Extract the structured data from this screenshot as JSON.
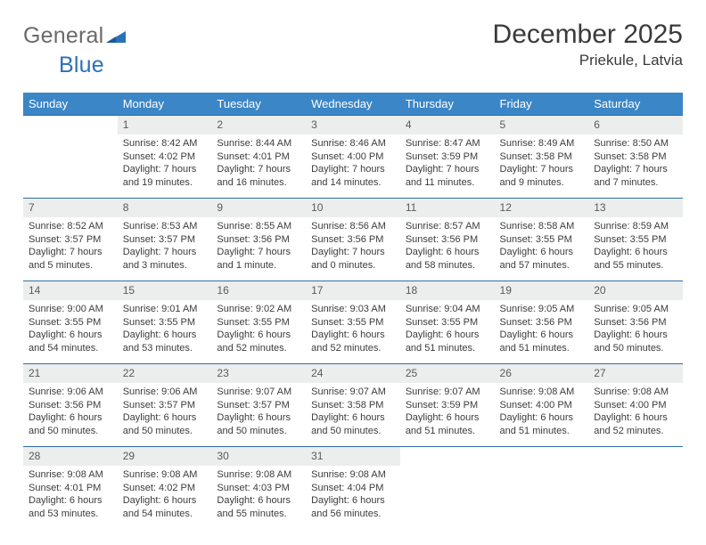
{
  "brand": {
    "part1": "General",
    "part2": "Blue"
  },
  "title": "December 2025",
  "subtitle": "Priekule, Latvia",
  "colors": {
    "header_bg": "#3b86c6",
    "header_text": "#ffffff",
    "rule": "#2f6ea8",
    "daynum_bg": "#eceded",
    "body_text": "#3c3c3c",
    "logo_gray": "#6a6a6a",
    "logo_blue": "#2a71b8"
  },
  "weekdays": [
    "Sunday",
    "Monday",
    "Tuesday",
    "Wednesday",
    "Thursday",
    "Friday",
    "Saturday"
  ],
  "weeks": [
    [
      null,
      {
        "n": "1",
        "sunrise": "8:42 AM",
        "sunset": "4:02 PM",
        "daylight": "7 hours and 19 minutes."
      },
      {
        "n": "2",
        "sunrise": "8:44 AM",
        "sunset": "4:01 PM",
        "daylight": "7 hours and 16 minutes."
      },
      {
        "n": "3",
        "sunrise": "8:46 AM",
        "sunset": "4:00 PM",
        "daylight": "7 hours and 14 minutes."
      },
      {
        "n": "4",
        "sunrise": "8:47 AM",
        "sunset": "3:59 PM",
        "daylight": "7 hours and 11 minutes."
      },
      {
        "n": "5",
        "sunrise": "8:49 AM",
        "sunset": "3:58 PM",
        "daylight": "7 hours and 9 minutes."
      },
      {
        "n": "6",
        "sunrise": "8:50 AM",
        "sunset": "3:58 PM",
        "daylight": "7 hours and 7 minutes."
      }
    ],
    [
      {
        "n": "7",
        "sunrise": "8:52 AM",
        "sunset": "3:57 PM",
        "daylight": "7 hours and 5 minutes."
      },
      {
        "n": "8",
        "sunrise": "8:53 AM",
        "sunset": "3:57 PM",
        "daylight": "7 hours and 3 minutes."
      },
      {
        "n": "9",
        "sunrise": "8:55 AM",
        "sunset": "3:56 PM",
        "daylight": "7 hours and 1 minute."
      },
      {
        "n": "10",
        "sunrise": "8:56 AM",
        "sunset": "3:56 PM",
        "daylight": "7 hours and 0 minutes."
      },
      {
        "n": "11",
        "sunrise": "8:57 AM",
        "sunset": "3:56 PM",
        "daylight": "6 hours and 58 minutes."
      },
      {
        "n": "12",
        "sunrise": "8:58 AM",
        "sunset": "3:55 PM",
        "daylight": "6 hours and 57 minutes."
      },
      {
        "n": "13",
        "sunrise": "8:59 AM",
        "sunset": "3:55 PM",
        "daylight": "6 hours and 55 minutes."
      }
    ],
    [
      {
        "n": "14",
        "sunrise": "9:00 AM",
        "sunset": "3:55 PM",
        "daylight": "6 hours and 54 minutes."
      },
      {
        "n": "15",
        "sunrise": "9:01 AM",
        "sunset": "3:55 PM",
        "daylight": "6 hours and 53 minutes."
      },
      {
        "n": "16",
        "sunrise": "9:02 AM",
        "sunset": "3:55 PM",
        "daylight": "6 hours and 52 minutes."
      },
      {
        "n": "17",
        "sunrise": "9:03 AM",
        "sunset": "3:55 PM",
        "daylight": "6 hours and 52 minutes."
      },
      {
        "n": "18",
        "sunrise": "9:04 AM",
        "sunset": "3:55 PM",
        "daylight": "6 hours and 51 minutes."
      },
      {
        "n": "19",
        "sunrise": "9:05 AM",
        "sunset": "3:56 PM",
        "daylight": "6 hours and 51 minutes."
      },
      {
        "n": "20",
        "sunrise": "9:05 AM",
        "sunset": "3:56 PM",
        "daylight": "6 hours and 50 minutes."
      }
    ],
    [
      {
        "n": "21",
        "sunrise": "9:06 AM",
        "sunset": "3:56 PM",
        "daylight": "6 hours and 50 minutes."
      },
      {
        "n": "22",
        "sunrise": "9:06 AM",
        "sunset": "3:57 PM",
        "daylight": "6 hours and 50 minutes."
      },
      {
        "n": "23",
        "sunrise": "9:07 AM",
        "sunset": "3:57 PM",
        "daylight": "6 hours and 50 minutes."
      },
      {
        "n": "24",
        "sunrise": "9:07 AM",
        "sunset": "3:58 PM",
        "daylight": "6 hours and 50 minutes."
      },
      {
        "n": "25",
        "sunrise": "9:07 AM",
        "sunset": "3:59 PM",
        "daylight": "6 hours and 51 minutes."
      },
      {
        "n": "26",
        "sunrise": "9:08 AM",
        "sunset": "4:00 PM",
        "daylight": "6 hours and 51 minutes."
      },
      {
        "n": "27",
        "sunrise": "9:08 AM",
        "sunset": "4:00 PM",
        "daylight": "6 hours and 52 minutes."
      }
    ],
    [
      {
        "n": "28",
        "sunrise": "9:08 AM",
        "sunset": "4:01 PM",
        "daylight": "6 hours and 53 minutes."
      },
      {
        "n": "29",
        "sunrise": "9:08 AM",
        "sunset": "4:02 PM",
        "daylight": "6 hours and 54 minutes."
      },
      {
        "n": "30",
        "sunrise": "9:08 AM",
        "sunset": "4:03 PM",
        "daylight": "6 hours and 55 minutes."
      },
      {
        "n": "31",
        "sunrise": "9:08 AM",
        "sunset": "4:04 PM",
        "daylight": "6 hours and 56 minutes."
      },
      null,
      null,
      null
    ]
  ],
  "labels": {
    "sunrise": "Sunrise: ",
    "sunset": "Sunset: ",
    "daylight": "Daylight: "
  }
}
